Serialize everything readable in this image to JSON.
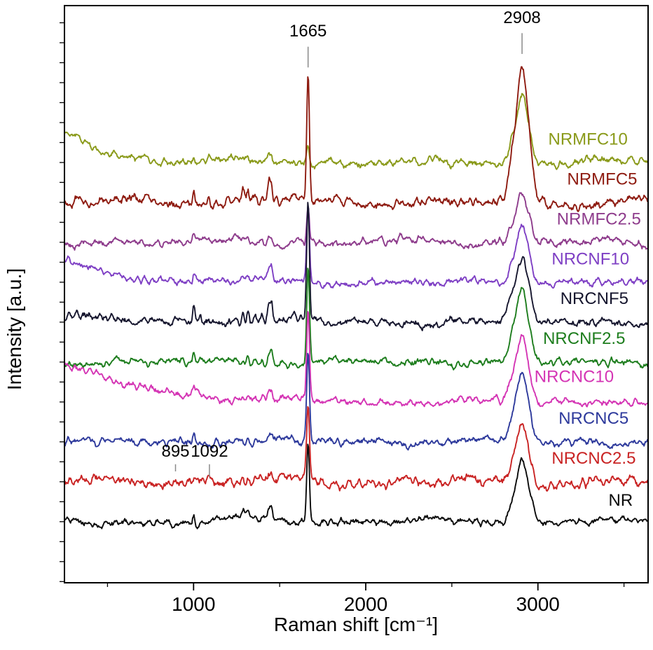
{
  "figure": {
    "background": "#ffffff"
  },
  "chart_data": {
    "type": "line",
    "title": "",
    "xlabel": "Raman shift [cm⁻¹]",
    "ylabel": "Intensity [a.u.]",
    "xlim": [
      250,
      3640
    ],
    "ylim": [
      -1.53,
      12.93
    ],
    "xticks": [
      1000,
      2000,
      3000
    ],
    "xticks_minor": [
      500,
      1500,
      2500,
      3500
    ],
    "ytick_minor_step": 0.5,
    "grid": false,
    "frame": true,
    "legend": "inline colored labels right of each curve",
    "axis_color": "#000000",
    "annotation_color": "#8a8a8a",
    "peak_annotations": [
      {
        "label": "1665",
        "x": 1665,
        "text_y": 12.16,
        "line_from": 11.9,
        "line_to": 11.38
      },
      {
        "label": "2908",
        "x": 2908,
        "text_y": 12.49,
        "line_from": 12.24,
        "line_to": 11.72
      },
      {
        "label": "895",
        "x": 895,
        "text_y": 1.63,
        "line_from": 1.44,
        "line_to": 1.26
      },
      {
        "label": "1092",
        "x": 1092,
        "text_y": 1.63,
        "line_from": 1.44,
        "line_to": 1.12
      }
    ],
    "base_peaks": [
      [
        1001,
        0.2,
        6
      ],
      [
        1038,
        0.05,
        6
      ],
      [
        1090,
        0.07,
        6
      ],
      [
        1130,
        0.05,
        7
      ],
      [
        1205,
        0.06,
        8
      ],
      [
        1245,
        0.09,
        9
      ],
      [
        1287,
        0.16,
        8
      ],
      [
        1315,
        0.16,
        7
      ],
      [
        1360,
        0.09,
        7
      ],
      [
        1400,
        0.06,
        7
      ],
      [
        1438,
        0.24,
        8
      ],
      [
        1453,
        0.22,
        6
      ],
      [
        1520,
        0.04,
        9
      ],
      [
        1580,
        0.04,
        10
      ],
      [
        2960,
        0.18,
        16
      ]
    ],
    "series": [
      {
        "name": "NRMFC10",
        "color": "#8a9a1a",
        "offset": 9,
        "peak_1665": 0.5,
        "peak_2908": 1.7,
        "cluster": 0.8,
        "left_decay": 0.8,
        "decay_len": 220,
        "noise": 0.11,
        "label_x": 3060,
        "label_dy": 0.45
      },
      {
        "name": "NRMFC5",
        "color": "#8e1b10",
        "offset": 8,
        "peak_1665": 3.2,
        "peak_2908": 3.4,
        "cluster": 2.0,
        "left_decay": 0,
        "decay_len": 1,
        "noise": 0.13,
        "label_x": 3170,
        "label_dy": 0.45
      },
      {
        "name": "NRMFC2.5",
        "color": "#8e3c8c",
        "offset": 7,
        "peak_1665": 1.0,
        "peak_2908": 1.2,
        "cluster": 0.7,
        "left_decay": 0,
        "decay_len": 1,
        "noise": 0.11,
        "label_x": 3110,
        "label_dy": 0.45
      },
      {
        "name": "NRCNF10",
        "color": "#7e3fc4",
        "offset": 6,
        "peak_1665": 1.9,
        "peak_2908": 1.5,
        "cluster": 0.9,
        "left_decay": 0.55,
        "decay_len": 280,
        "noise": 0.1,
        "label_x": 3080,
        "label_dy": 0.45
      },
      {
        "name": "NRCNF5",
        "color": "#16162e",
        "offset": 5,
        "peak_1665": 2.9,
        "peak_2908": 1.6,
        "cluster": 2.0,
        "left_decay": 0.25,
        "decay_len": 200,
        "noise": 0.12,
        "label_x": 3130,
        "label_dy": 0.45
      },
      {
        "name": "NRCNF2.5",
        "color": "#1d7d1d",
        "offset": 4,
        "peak_1665": 2.4,
        "peak_2908": 1.8,
        "cluster": 1.0,
        "left_decay": 0,
        "decay_len": 1,
        "noise": 0.1,
        "label_x": 3030,
        "label_dy": 0.45
      },
      {
        "name": "NRCNC10",
        "color": "#d434b4",
        "offset": 3,
        "peak_1665": 2.3,
        "peak_2908": 1.7,
        "cluster": 0.9,
        "left_decay": 1.0,
        "decay_len": 420,
        "noise": 0.1,
        "label_x": 2980,
        "label_dy": 0.5
      },
      {
        "name": "NRCNC5",
        "color": "#2e3a9c",
        "offset": 2,
        "peak_1665": 2.2,
        "peak_2908": 1.8,
        "cluster": 0.9,
        "left_decay": 0,
        "decay_len": 1,
        "noise": 0.11,
        "label_x": 3120,
        "label_dy": 0.45
      },
      {
        "name": "NRCNC2.5",
        "color": "#c92323",
        "offset": 1,
        "peak_1665": 1.8,
        "peak_2908": 1.5,
        "cluster": 0.8,
        "left_decay": 0,
        "decay_len": 1,
        "noise": 0.14,
        "label_x": 3080,
        "label_dy": 0.45
      },
      {
        "name": "NR",
        "color": "#0a0a0a",
        "offset": 0,
        "peak_1665": 2.0,
        "peak_2908": 1.55,
        "cluster": 1.2,
        "left_decay": 0,
        "decay_len": 1,
        "noise": 0.1,
        "label_x": 3410,
        "label_dy": 0.4
      }
    ]
  }
}
